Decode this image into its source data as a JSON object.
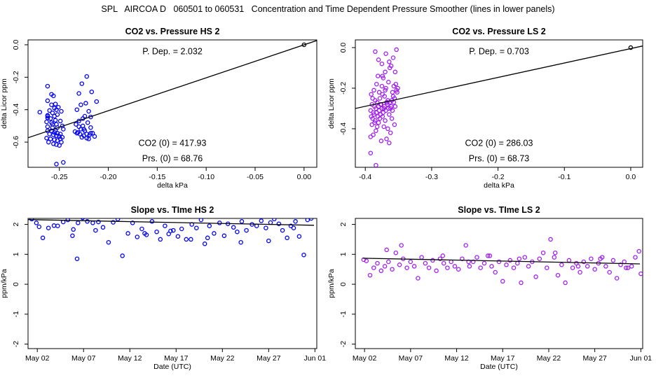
{
  "title": "SPL   AIRCOA D   060501 to 060531   Concentration and Time Dependent Pressure Smoother (lines in lower panels)",
  "colors": {
    "hs": "#0000ff",
    "ls": "#a020f0",
    "line": "#000000"
  },
  "chart_data": [
    {
      "id": "p1",
      "type": "scatter",
      "title": "CO2 vs. Pressure HS 2",
      "xlabel": "delta kPa",
      "ylabel": "delta Licor ppm",
      "xlim": [
        -0.282,
        0.013
      ],
      "ylim": [
        -0.755,
        0.03
      ],
      "xticks": [
        -0.25,
        -0.2,
        -0.15,
        -0.1,
        -0.05,
        0.0
      ],
      "xtick_labels": [
        "-0.25",
        "-0.20",
        "-0.15",
        "-0.10",
        "-0.05",
        "0.00"
      ],
      "yticks": [
        -0.6,
        -0.4,
        -0.2,
        0.0
      ],
      "ytick_labels": [
        "-0.6",
        "-0.4",
        "-0.2",
        "0.0"
      ],
      "color": "hs",
      "fit_line": {
        "x": [
          -0.282,
          0.013
        ],
        "y": [
          -0.573,
          0.026
        ]
      },
      "annotations": {
        "p_dep": "P. Dep. =  2.032",
        "co2_0": "CO2 (0) =  417.93",
        "prs_0": "Prs. (0) =  68.76"
      },
      "reference_point": {
        "x": 0.0,
        "y": 0.0
      },
      "x": [
        -0.262,
        -0.258,
        -0.256,
        -0.262,
        -0.254,
        -0.258,
        -0.251,
        -0.255,
        -0.253,
        -0.26,
        -0.257,
        -0.248,
        -0.252,
        -0.262,
        -0.255,
        -0.262,
        -0.259,
        -0.254,
        -0.249,
        -0.263,
        -0.258,
        -0.253,
        -0.247,
        -0.262,
        -0.257,
        -0.252,
        -0.246,
        -0.262,
        -0.258,
        -0.255,
        -0.252,
        -0.249,
        -0.26,
        -0.256,
        -0.253,
        -0.25,
        -0.247,
        -0.263,
        -0.259,
        -0.255,
        -0.252,
        -0.248,
        -0.261,
        -0.256,
        -0.253,
        -0.25,
        -0.27,
        -0.262,
        -0.257,
        -0.254,
        -0.249,
        -0.253,
        -0.246,
        -0.222,
        -0.227,
        -0.217,
        -0.23,
        -0.212,
        -0.223,
        -0.228,
        -0.232,
        -0.22,
        -0.224,
        -0.218,
        -0.226,
        -0.23,
        -0.221,
        -0.233,
        -0.226,
        -0.218,
        -0.228,
        -0.224,
        -0.231,
        -0.216,
        -0.229,
        -0.219,
        -0.225,
        -0.214,
        -0.227,
        -0.222,
        -0.232,
        -0.22,
        -0.225,
        -0.23,
        -0.218,
        -0.222,
        -0.234
      ],
      "y": [
        -0.255,
        -0.305,
        -0.315,
        -0.345,
        -0.365,
        -0.37,
        -0.385,
        -0.39,
        -0.4,
        -0.405,
        -0.42,
        -0.41,
        -0.43,
        -0.435,
        -0.44,
        -0.44,
        -0.455,
        -0.465,
        -0.47,
        -0.475,
        -0.48,
        -0.49,
        -0.5,
        -0.505,
        -0.51,
        -0.51,
        -0.52,
        -0.53,
        -0.53,
        -0.54,
        -0.545,
        -0.55,
        -0.55,
        -0.555,
        -0.56,
        -0.565,
        -0.57,
        -0.575,
        -0.58,
        -0.585,
        -0.59,
        -0.6,
        -0.6,
        -0.61,
        -0.615,
        -0.62,
        -0.415,
        -0.45,
        -0.49,
        -0.53,
        -0.58,
        -0.735,
        -0.725,
        -0.195,
        -0.24,
        -0.29,
        -0.3,
        -0.35,
        -0.36,
        -0.37,
        -0.4,
        -0.41,
        -0.44,
        -0.445,
        -0.455,
        -0.47,
        -0.48,
        -0.49,
        -0.5,
        -0.51,
        -0.52,
        -0.53,
        -0.54,
        -0.545,
        -0.55,
        -0.555,
        -0.56,
        -0.565,
        -0.57,
        -0.575,
        -0.545,
        -0.58,
        -0.52,
        -0.505,
        -0.545,
        -0.55,
        -0.535
      ]
    },
    {
      "id": "p2",
      "type": "scatter",
      "title": "CO2 vs. Pressure LS 2",
      "xlabel": "delta kPa",
      "ylabel": "delta Licor ppm",
      "xlim": [
        -0.415,
        0.018
      ],
      "ylim": [
        -0.59,
        0.038
      ],
      "xticks": [
        -0.4,
        -0.3,
        -0.2,
        -0.1,
        0.0
      ],
      "xtick_labels": [
        "-0.4",
        "-0.3",
        "-0.2",
        "-0.1",
        "0.0"
      ],
      "yticks": [
        -0.6,
        -0.4,
        -0.2,
        0.0
      ],
      "ytick_labels": [
        "-0.6",
        "-0.4",
        "-0.2",
        "0.0"
      ],
      "color": "ls",
      "fit_line": {
        "x": [
          -0.415,
          0.018
        ],
        "y": [
          -0.3,
          0.008
        ]
      },
      "annotations": {
        "p_dep": "P. Dep. =  0.703",
        "co2_0": "CO2 (0) =  286.03",
        "prs_0": "Prs. (0) =  68.73"
      },
      "reference_point": {
        "x": 0.0,
        "y": 0.0
      },
      "x": [
        -0.391,
        -0.389,
        -0.387,
        -0.385,
        -0.383,
        -0.381,
        -0.379,
        -0.377,
        -0.375,
        -0.373,
        -0.371,
        -0.369,
        -0.367,
        -0.365,
        -0.363,
        -0.361,
        -0.359,
        -0.357,
        -0.355,
        -0.353,
        -0.351,
        -0.39,
        -0.386,
        -0.382,
        -0.378,
        -0.374,
        -0.37,
        -0.366,
        -0.362,
        -0.358,
        -0.354,
        -0.392,
        -0.388,
        -0.384,
        -0.38,
        -0.376,
        -0.372,
        -0.368,
        -0.364,
        -0.36,
        -0.356,
        -0.352,
        -0.391,
        -0.387,
        -0.383,
        -0.379,
        -0.375,
        -0.371,
        -0.367,
        -0.363,
        -0.359,
        -0.355,
        -0.389,
        -0.385,
        -0.381,
        -0.377,
        -0.373,
        -0.369,
        -0.365,
        -0.361,
        -0.357,
        -0.39,
        -0.386,
        -0.382,
        -0.378,
        -0.374,
        -0.37,
        -0.366,
        -0.362,
        -0.392,
        -0.388,
        -0.384,
        -0.38,
        -0.376,
        -0.372,
        -0.368,
        -0.364,
        -0.36,
        -0.356,
        -0.385,
        -0.38,
        -0.375,
        -0.37,
        -0.374,
        -0.369,
        -0.364,
        -0.358,
        -0.353,
        -0.392,
        -0.384
      ],
      "y": [
        -0.23,
        -0.25,
        -0.21,
        -0.26,
        -0.18,
        -0.14,
        -0.22,
        -0.28,
        -0.19,
        -0.15,
        -0.24,
        -0.2,
        -0.27,
        -0.17,
        -0.1,
        -0.09,
        -0.22,
        -0.19,
        -0.12,
        -0.21,
        -0.2,
        -0.28,
        -0.29,
        -0.27,
        -0.25,
        -0.23,
        -0.21,
        -0.26,
        -0.3,
        -0.24,
        -0.18,
        -0.31,
        -0.32,
        -0.3,
        -0.29,
        -0.28,
        -0.3,
        -0.27,
        -0.33,
        -0.26,
        -0.25,
        -0.22,
        -0.34,
        -0.33,
        -0.32,
        -0.31,
        -0.3,
        -0.29,
        -0.28,
        -0.27,
        -0.31,
        -0.29,
        -0.35,
        -0.36,
        -0.34,
        -0.33,
        -0.32,
        -0.31,
        -0.3,
        -0.29,
        -0.27,
        -0.38,
        -0.37,
        -0.39,
        -0.35,
        -0.34,
        -0.36,
        -0.4,
        -0.42,
        -0.44,
        -0.43,
        -0.41,
        -0.37,
        -0.46,
        -0.39,
        -0.45,
        -0.47,
        -0.35,
        -0.38,
        -0.02,
        -0.06,
        -0.08,
        -0.12,
        -0.14,
        -0.03,
        -0.07,
        -0.05,
        -0.01,
        -0.52,
        -0.58
      ]
    },
    {
      "id": "p3",
      "type": "scatter",
      "title": "Slope vs. TIme HS 2",
      "xlabel": "Date (UTC)",
      "ylabel": "ppm/kPa",
      "xlim": [
        0.0,
        31.2
      ],
      "ylim": [
        -2.15,
        2.2
      ],
      "xticks": [
        1,
        6,
        11,
        16,
        21,
        26,
        31
      ],
      "xtick_labels": [
        "May 02",
        "May 07",
        "May 12",
        "May 17",
        "May 22",
        "May 27",
        "Jun 01"
      ],
      "yticks": [
        -2,
        -1,
        0,
        1,
        2
      ],
      "ytick_labels": [
        "-2",
        "-1",
        "0",
        "1",
        "2"
      ],
      "color": "hs",
      "fit_line": {
        "x": [
          0.0,
          30.9
        ],
        "y": [
          2.16,
          1.97
        ]
      },
      "x": [
        0.4,
        0.9,
        1.2,
        1.6,
        2.2,
        2.8,
        3.2,
        3.8,
        4.3,
        4.9,
        5.3,
        5.9,
        6.4,
        7.0,
        7.6,
        8.1,
        8.7,
        9.2,
        9.7,
        10.2,
        10.8,
        11.3,
        11.8,
        12.3,
        12.8,
        13.4,
        13.9,
        14.3,
        14.8,
        15.2,
        15.7,
        16.2,
        16.6,
        17.1,
        17.7,
        18.2,
        18.7,
        19.1,
        19.6,
        20.1,
        20.7,
        21.2,
        21.6,
        22.2,
        22.6,
        23.1,
        23.6,
        24.2,
        24.7,
        25.2,
        25.7,
        26.2,
        26.6,
        27.1,
        27.5,
        28.0,
        28.4,
        28.9,
        29.3,
        29.8,
        30.2,
        30.6,
        4.8,
        5.4,
        7.3,
        12.6,
        15.4,
        17.6,
        19.4,
        23.0,
        26.0,
        28.7
      ],
      "y": [
        2.18,
        2.05,
        1.92,
        1.55,
        1.88,
        1.96,
        1.95,
        2.08,
        2.15,
        1.83,
        0.85,
        2.22,
        2.1,
        2.05,
        2.08,
        1.9,
        1.4,
        2.07,
        2.18,
        0.95,
        1.7,
        2.05,
        1.58,
        1.85,
        1.65,
        2.1,
        1.75,
        1.5,
        1.95,
        1.68,
        1.8,
        1.6,
        1.85,
        1.5,
        2.0,
        1.88,
        2.15,
        1.35,
        1.95,
        1.7,
        2.05,
        1.62,
        2.02,
        1.9,
        1.75,
        2.1,
        1.8,
        2.0,
        1.95,
        2.12,
        1.88,
        2.06,
        2.18,
        2.02,
        1.8,
        1.55,
        1.95,
        2.1,
        1.6,
        0.98,
        2.15,
        2.2,
        1.62,
        2.05,
        1.8,
        1.7,
        1.78,
        1.5,
        1.55,
        1.4,
        1.45,
        1.88
      ]
    },
    {
      "id": "p4",
      "type": "scatter",
      "title": "Slope vs. TIme LS 2",
      "xlabel": "Date (UTC)",
      "ylabel": "ppm/kPa",
      "xlim": [
        0.0,
        31.2
      ],
      "ylim": [
        -2.15,
        2.2
      ],
      "xticks": [
        1,
        6,
        11,
        16,
        21,
        26,
        31
      ],
      "xtick_labels": [
        "May 02",
        "May 07",
        "May 12",
        "May 17",
        "May 22",
        "May 27",
        "Jun 01"
      ],
      "yticks": [
        -2,
        -1,
        0,
        1,
        2
      ],
      "ytick_labels": [
        "-2",
        "-1",
        "0",
        "1",
        "2"
      ],
      "color": "ls",
      "fit_line": {
        "x": [
          0.8,
          30.9
        ],
        "y": [
          0.87,
          0.68
        ]
      },
      "x": [
        0.9,
        1.2,
        1.6,
        2.0,
        2.4,
        2.8,
        3.2,
        3.6,
        4.0,
        4.4,
        4.8,
        5.2,
        5.6,
        6.0,
        6.4,
        6.8,
        7.2,
        7.6,
        8.0,
        8.4,
        8.8,
        9.2,
        9.6,
        10.0,
        10.4,
        10.8,
        11.2,
        11.6,
        12.0,
        12.4,
        12.8,
        13.2,
        13.6,
        14.0,
        14.4,
        14.8,
        15.2,
        15.6,
        16.0,
        16.4,
        16.8,
        17.2,
        17.6,
        18.0,
        18.4,
        18.8,
        19.2,
        19.6,
        20.0,
        20.4,
        20.8,
        21.2,
        21.6,
        22.0,
        22.4,
        22.8,
        23.2,
        23.6,
        24.0,
        24.4,
        24.8,
        25.2,
        25.6,
        26.0,
        26.4,
        26.8,
        27.2,
        27.6,
        28.0,
        28.4,
        28.8,
        29.2,
        29.6,
        30.0,
        30.4,
        30.8,
        31.0,
        3.4,
        5.0,
        9.5,
        12.3,
        14.6,
        17.8,
        21.7,
        24.2,
        26.6,
        29.4
      ],
      "y": [
        0.82,
        0.78,
        0.3,
        0.55,
        0.7,
        0.45,
        0.6,
        0.75,
        0.5,
        1.05,
        0.65,
        0.85,
        0.55,
        0.75,
        0.6,
        0.2,
        0.9,
        0.7,
        0.55,
        0.8,
        0.45,
        0.85,
        0.7,
        0.55,
        0.75,
        0.6,
        0.5,
        0.85,
        1.3,
        0.6,
        0.75,
        0.9,
        0.55,
        0.7,
        0.95,
        0.6,
        0.4,
        0.75,
        0.1,
        0.65,
        0.8,
        0.55,
        0.7,
        0.05,
        0.9,
        0.6,
        0.75,
        0.25,
        0.85,
        1.05,
        0.55,
        1.5,
        0.9,
        0.3,
        0.65,
        0.05,
        0.8,
        0.55,
        0.7,
        0.4,
        0.75,
        0.6,
        0.85,
        0.5,
        0.7,
        0.9,
        0.6,
        0.4,
        0.8,
        0.2,
        0.65,
        0.75,
        0.55,
        0.6,
        0.9,
        1.1,
        0.35,
        1.15,
        1.3,
        0.95,
        0.75,
        0.95,
        0.85,
        1.05,
        0.6,
        0.85,
        0.55
      ]
    }
  ]
}
